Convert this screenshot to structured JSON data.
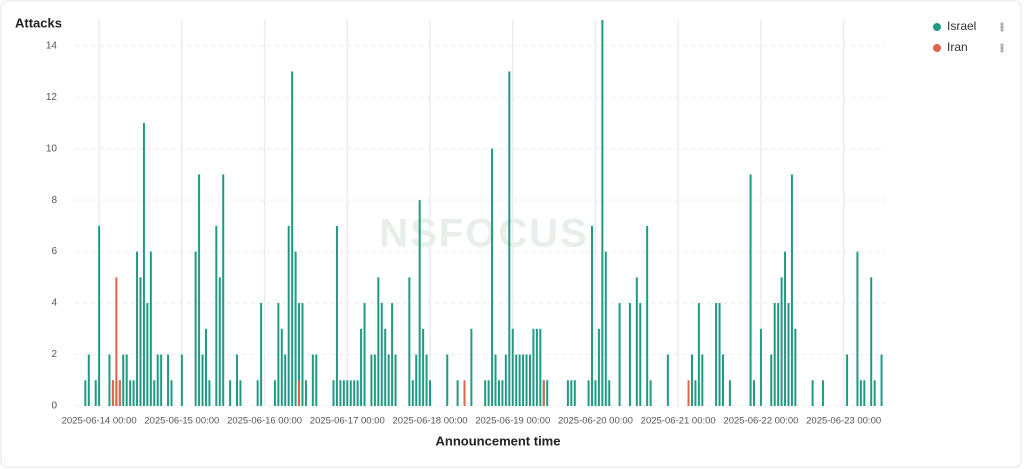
{
  "chart_data": {
    "type": "bar",
    "y_label": "Attacks",
    "x_label": "Announcement time",
    "watermark": "NSFOCUS",
    "ylim": [
      0,
      15
    ],
    "yticks": [
      0,
      2,
      4,
      6,
      8,
      10,
      12,
      14
    ],
    "xlim": [
      "2025-06-13 17:00",
      "2025-06-23 12:00"
    ],
    "xticks": [
      "2025-06-14 00:00",
      "2025-06-15 00:00",
      "2025-06-16 00:00",
      "2025-06-17 00:00",
      "2025-06-18 00:00",
      "2025-06-19 00:00",
      "2025-06-20 00:00",
      "2025-06-21 00:00",
      "2025-06-22 00:00",
      "2025-06-23 00:00"
    ],
    "grid": true,
    "legend": "top-right",
    "series": [
      {
        "name": "Israel",
        "color": "#1f9b83",
        "x": [
          "2025-06-13 20:00",
          "2025-06-13 21:00",
          "2025-06-13 23:00",
          "2025-06-14 00:00",
          "2025-06-14 03:00",
          "2025-06-14 04:00",
          "2025-06-14 05:00",
          "2025-06-14 06:00",
          "2025-06-14 07:00",
          "2025-06-14 08:00",
          "2025-06-14 09:00",
          "2025-06-14 10:00",
          "2025-06-14 11:00",
          "2025-06-14 12:00",
          "2025-06-14 13:00",
          "2025-06-14 14:00",
          "2025-06-14 15:00",
          "2025-06-14 16:00",
          "2025-06-14 17:00",
          "2025-06-14 18:00",
          "2025-06-14 20:00",
          "2025-06-14 21:00",
          "2025-06-15 00:00",
          "2025-06-15 04:00",
          "2025-06-15 05:00",
          "2025-06-15 06:00",
          "2025-06-15 07:00",
          "2025-06-15 08:00",
          "2025-06-15 10:00",
          "2025-06-15 11:00",
          "2025-06-15 12:00",
          "2025-06-15 14:00",
          "2025-06-15 16:00",
          "2025-06-15 17:00",
          "2025-06-15 22:00",
          "2025-06-15 23:00",
          "2025-06-16 03:00",
          "2025-06-16 04:00",
          "2025-06-16 05:00",
          "2025-06-16 06:00",
          "2025-06-16 07:00",
          "2025-06-16 08:00",
          "2025-06-16 09:00",
          "2025-06-16 10:00",
          "2025-06-16 11:00",
          "2025-06-16 12:00",
          "2025-06-16 14:00",
          "2025-06-16 15:00",
          "2025-06-16 20:00",
          "2025-06-16 21:00",
          "2025-06-16 22:00",
          "2025-06-16 23:00",
          "2025-06-17 00:00",
          "2025-06-17 01:00",
          "2025-06-17 02:00",
          "2025-06-17 03:00",
          "2025-06-17 04:00",
          "2025-06-17 05:00",
          "2025-06-17 07:00",
          "2025-06-17 08:00",
          "2025-06-17 09:00",
          "2025-06-17 10:00",
          "2025-06-17 11:00",
          "2025-06-17 12:00",
          "2025-06-17 13:00",
          "2025-06-17 14:00",
          "2025-06-17 18:00",
          "2025-06-17 19:00",
          "2025-06-17 20:00",
          "2025-06-17 21:00",
          "2025-06-17 22:00",
          "2025-06-17 23:00",
          "2025-06-18 00:00",
          "2025-06-18 05:00",
          "2025-06-18 08:00",
          "2025-06-18 12:00",
          "2025-06-18 16:00",
          "2025-06-18 17:00",
          "2025-06-18 18:00",
          "2025-06-18 19:00",
          "2025-06-18 20:00",
          "2025-06-18 21:00",
          "2025-06-18 22:00",
          "2025-06-18 23:00",
          "2025-06-19 00:00",
          "2025-06-19 01:00",
          "2025-06-19 02:00",
          "2025-06-19 03:00",
          "2025-06-19 04:00",
          "2025-06-19 05:00",
          "2025-06-19 06:00",
          "2025-06-19 07:00",
          "2025-06-19 08:00",
          "2025-06-19 09:00",
          "2025-06-19 10:00",
          "2025-06-19 16:00",
          "2025-06-19 17:00",
          "2025-06-19 18:00",
          "2025-06-19 22:00",
          "2025-06-19 23:00",
          "2025-06-20 00:00",
          "2025-06-20 01:00",
          "2025-06-20 02:00",
          "2025-06-20 03:00",
          "2025-06-20 04:00",
          "2025-06-20 07:00",
          "2025-06-20 10:00",
          "2025-06-20 12:00",
          "2025-06-20 13:00",
          "2025-06-20 15:00",
          "2025-06-20 16:00",
          "2025-06-20 21:00",
          "2025-06-21 04:00",
          "2025-06-21 05:00",
          "2025-06-21 06:00",
          "2025-06-21 07:00",
          "2025-06-21 11:00",
          "2025-06-21 12:00",
          "2025-06-21 13:00",
          "2025-06-21 15:00",
          "2025-06-21 21:00",
          "2025-06-21 22:00",
          "2025-06-22 00:00",
          "2025-06-22 03:00",
          "2025-06-22 04:00",
          "2025-06-22 05:00",
          "2025-06-22 06:00",
          "2025-06-22 07:00",
          "2025-06-22 08:00",
          "2025-06-22 09:00",
          "2025-06-22 10:00",
          "2025-06-22 15:00",
          "2025-06-22 18:00",
          "2025-06-23 01:00",
          "2025-06-23 04:00",
          "2025-06-23 05:00",
          "2025-06-23 06:00",
          "2025-06-23 08:00",
          "2025-06-23 09:00",
          "2025-06-23 11:00"
        ],
        "values": [
          1,
          2,
          1,
          7,
          2,
          1,
          1,
          1,
          2,
          2,
          1,
          1,
          6,
          5,
          11,
          4,
          6,
          1,
          2,
          2,
          2,
          1,
          2,
          6,
          9,
          2,
          3,
          1,
          7,
          5,
          9,
          1,
          2,
          1,
          1,
          4,
          1,
          4,
          3,
          2,
          7,
          13,
          6,
          4,
          4,
          1,
          2,
          2,
          1,
          7,
          1,
          1,
          1,
          1,
          1,
          1,
          3,
          4,
          2,
          2,
          5,
          4,
          3,
          2,
          4,
          2,
          5,
          1,
          2,
          8,
          3,
          2,
          1,
          2,
          1,
          3,
          1,
          1,
          10,
          2,
          1,
          1,
          2,
          13,
          3,
          2,
          2,
          2,
          2,
          2,
          3,
          3,
          3,
          1,
          1,
          1,
          1,
          1,
          1,
          7,
          1,
          3,
          15,
          6,
          1,
          4,
          4,
          5,
          4,
          7,
          1,
          2,
          2,
          1,
          4,
          2,
          4,
          4,
          2,
          1,
          9,
          1,
          3,
          2,
          4,
          4,
          5,
          6,
          4,
          9,
          3,
          1,
          1,
          2,
          6,
          1,
          1,
          5,
          1,
          2
        ]
      },
      {
        "name": "Iran",
        "color": "#e06449",
        "x": [
          "2025-06-14 04:00",
          "2025-06-14 05:00",
          "2025-06-14 06:00",
          "2025-06-16 10:00",
          "2025-06-18 10:00",
          "2025-06-19 09:00",
          "2025-06-21 03:00"
        ],
        "values": [
          1,
          5,
          1,
          1,
          1,
          1,
          1
        ]
      }
    ]
  }
}
